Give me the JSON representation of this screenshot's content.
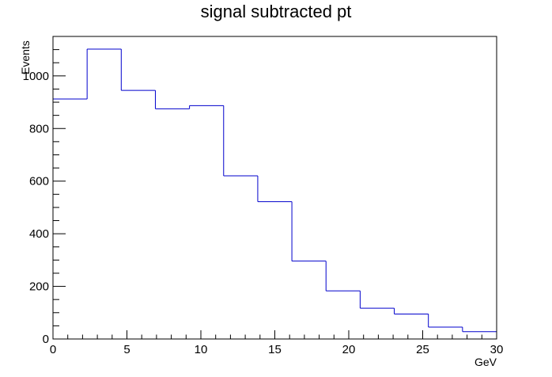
{
  "chart_data": {
    "type": "bar",
    "style": "step-histogram",
    "title": "signal subtracted pt",
    "xlabel": "GeV",
    "ylabel": "Events",
    "xlim": [
      0,
      30
    ],
    "ylim": [
      0,
      1150
    ],
    "bin_width": 2.3077,
    "bin_edges": [
      0,
      2.3077,
      4.6154,
      6.9231,
      9.2308,
      11.5385,
      13.8462,
      16.1538,
      18.4615,
      20.7692,
      23.0769,
      25.3846,
      27.6923,
      30
    ],
    "values": [
      912,
      1102,
      945,
      875,
      887,
      620,
      522,
      296,
      183,
      117,
      95,
      45,
      28
    ],
    "x_ticks": [
      0,
      5,
      10,
      15,
      20,
      25,
      30
    ],
    "x_tick_labels": [
      "0",
      "5",
      "10",
      "15",
      "20",
      "25",
      "30"
    ],
    "y_ticks": [
      0,
      200,
      400,
      600,
      800,
      1000
    ],
    "y_tick_labels": [
      "0",
      "200",
      "400",
      "600",
      "800",
      "1000"
    ],
    "line_color": "#0000cc",
    "grid": false
  }
}
